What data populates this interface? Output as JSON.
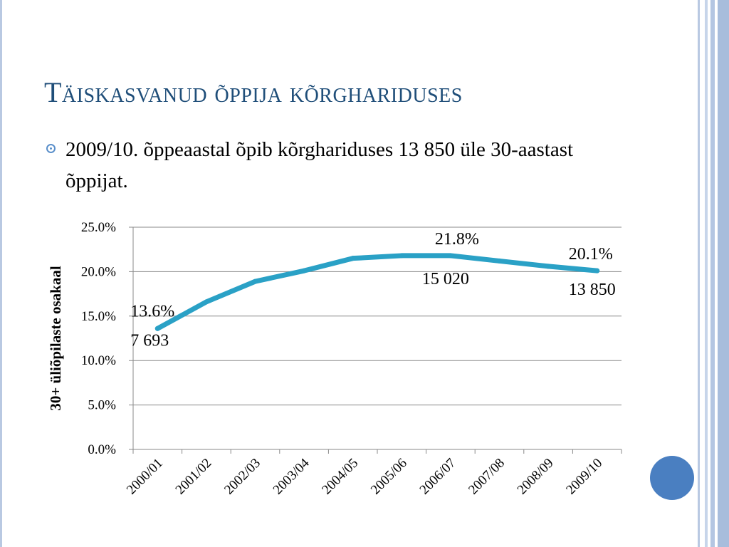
{
  "slide": {
    "title": "Täiskasvanud õppija kõrghariduses",
    "bullet_text": "2009/10. õppeaastal õpib kõrghariduses 13 850 üle 30-aastast õppijat."
  },
  "colors": {
    "title": "#1f4e79",
    "line": "#2aa1c6",
    "grid": "#888888",
    "accent_circle": "#4a7fc1",
    "frame": "#b9c9e2"
  },
  "chart_data": {
    "type": "line",
    "ylabel": "30+ üliõpilaste osakaal",
    "xlabel": "",
    "categories": [
      "2000/01",
      "2001/02",
      "2002/03",
      "2003/04",
      "2004/05",
      "2005/06",
      "2006/07",
      "2007/08",
      "2008/09",
      "2009/10"
    ],
    "yticks": [
      "0.0%",
      "5.0%",
      "10.0%",
      "15.0%",
      "20.0%",
      "25.0%"
    ],
    "ylim": [
      0,
      25
    ],
    "grid": true,
    "series": [
      {
        "values": [
          13.6,
          16.6,
          18.9,
          20.1,
          21.5,
          21.8,
          21.8,
          21.2,
          20.6,
          20.1
        ]
      }
    ],
    "annotations": [
      {
        "index": 0,
        "pct": "13.6%",
        "count": "7 693"
      },
      {
        "index": 6,
        "pct": "21.8%",
        "count": "15 020"
      },
      {
        "index": 9,
        "pct": "20.1%",
        "count": "13 850"
      }
    ]
  }
}
